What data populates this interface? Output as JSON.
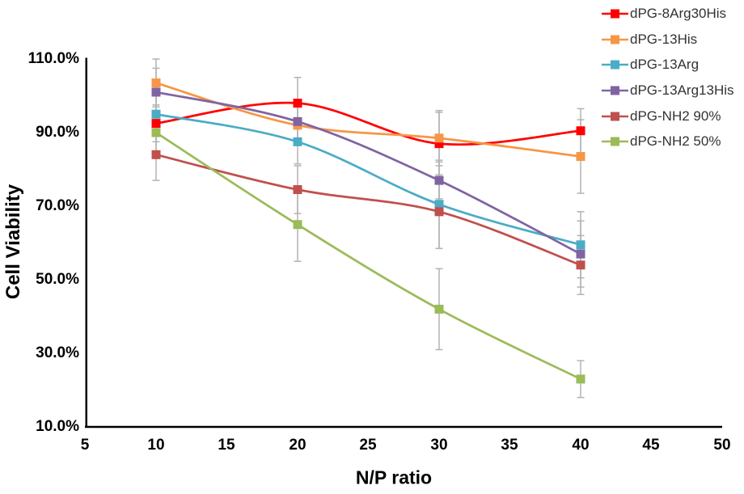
{
  "chart_data": {
    "type": "line",
    "title": "",
    "xlabel": "N/P ratio",
    "ylabel": "Cell Viability",
    "x": [
      10,
      20,
      30,
      40
    ],
    "xlim": [
      5,
      50
    ],
    "ylim": [
      10,
      110
    ],
    "x_tick_labels": [
      "5",
      "10",
      "15",
      "20",
      "25",
      "30",
      "35",
      "40",
      "45",
      "50"
    ],
    "x_tick_values": [
      5,
      10,
      15,
      20,
      25,
      30,
      35,
      40,
      45,
      50
    ],
    "y_tick_labels": [
      "10.0%",
      "30.0%",
      "50.0%",
      "70.0%",
      "90.0%",
      "110.0%"
    ],
    "y_tick_values": [
      10,
      30,
      50,
      70,
      90,
      110
    ],
    "grid": false,
    "legend_position": "top-right-vertical",
    "line_style": "smoothed",
    "marker": "square",
    "value_unit": "%",
    "axis_color": "#000000",
    "error_bar_color": "#B3B3B3",
    "series": [
      {
        "name": "dPG-8Arg30His",
        "color": "#FF0000",
        "values": [
          92.5,
          98,
          87,
          90.5
        ],
        "errors": [
          5,
          7,
          8.5,
          6
        ]
      },
      {
        "name": "dPG-13His",
        "color": "#F79646",
        "values": [
          103.5,
          92,
          88.5,
          83.5
        ],
        "errors": [
          6.5,
          5,
          7.5,
          10
        ]
      },
      {
        "name": "dPG-13Arg",
        "color": "#4BACC6",
        "values": [
          95,
          87.5,
          70.5,
          59.5
        ],
        "errors": [
          5,
          6,
          12,
          9
        ]
      },
      {
        "name": "dPG-13Arg13His",
        "color": "#8064A2",
        "values": [
          101,
          93,
          77,
          57
        ],
        "errors": [
          6.5,
          5,
          5,
          9
        ]
      },
      {
        "name": "dPG-NH2 90%",
        "color": "#C0504D",
        "values": [
          84,
          74.5,
          68.5,
          54
        ],
        "errors": [
          7,
          6.5,
          10,
          8
        ]
      },
      {
        "name": "dPG-NH2 50%",
        "color": "#9BBB59",
        "values": [
          90,
          65,
          42,
          23
        ],
        "errors": [
          6,
          10,
          11,
          5
        ]
      }
    ]
  }
}
